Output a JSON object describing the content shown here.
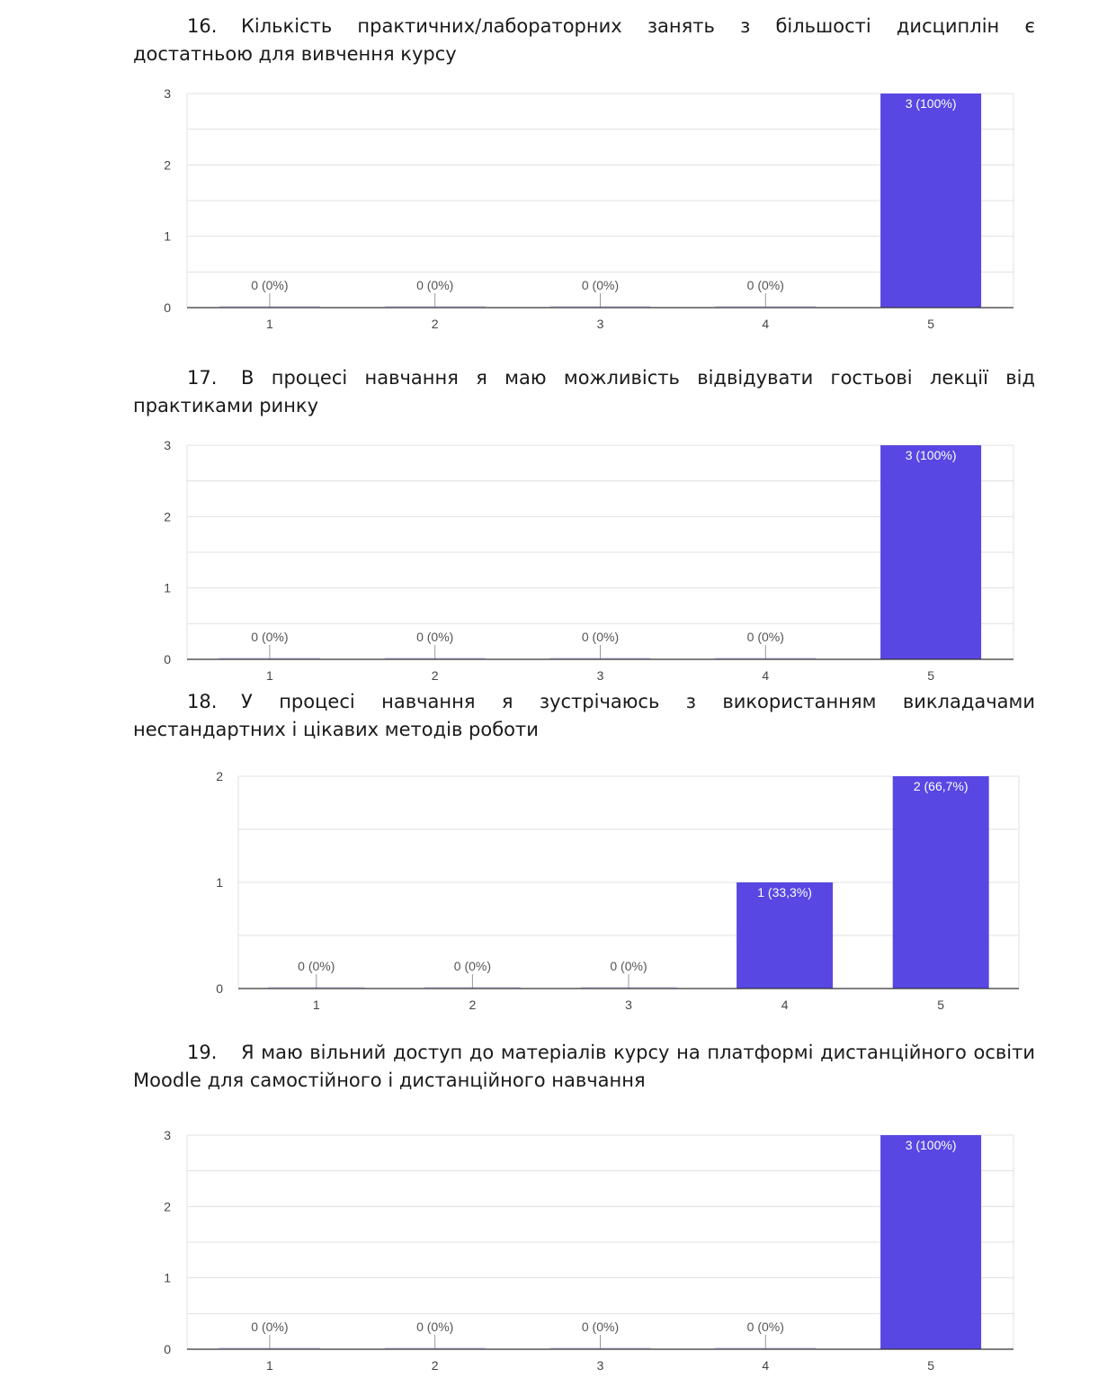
{
  "questions": [
    {
      "number": "16.",
      "text": "Кількість практичних/лабораторних занять з більшості дисциплін є достатньою для вивчення курсу"
    },
    {
      "number": "17.",
      "text": "В процесі навчання я маю можливість відвідувати гостьові лекції від практиками ринку"
    },
    {
      "number": "18.",
      "text": "У процесі навчання я зустрічаюсь з використанням викладачами нестандартних і цікавих методів роботи"
    },
    {
      "number": "19.",
      "text": "Я маю вільний доступ до матеріалів курсу на платформі дистанційного освіти Moodle для самостійного і дистанційного навчання"
    }
  ],
  "bar_color": "#5847e3",
  "chart_data": [
    {
      "type": "bar",
      "categories": [
        "1",
        "2",
        "3",
        "4",
        "5"
      ],
      "values": [
        0,
        0,
        0,
        0,
        3
      ],
      "labels": [
        "0 (0%)",
        "0 (0%)",
        "0 (0%)",
        "0 (0%)",
        "3 (100%)"
      ],
      "yticks": [
        "0",
        "1",
        "2",
        "3"
      ],
      "ylim": [
        0,
        3
      ],
      "grid": true
    },
    {
      "type": "bar",
      "categories": [
        "1",
        "2",
        "3",
        "4",
        "5"
      ],
      "values": [
        0,
        0,
        0,
        0,
        3
      ],
      "labels": [
        "0 (0%)",
        "0 (0%)",
        "0 (0%)",
        "0 (0%)",
        "3 (100%)"
      ],
      "yticks": [
        "0",
        "1",
        "2",
        "3"
      ],
      "ylim": [
        0,
        3
      ],
      "grid": true
    },
    {
      "type": "bar",
      "categories": [
        "1",
        "2",
        "3",
        "4",
        "5"
      ],
      "values": [
        0,
        0,
        0,
        1,
        2
      ],
      "labels": [
        "0 (0%)",
        "0 (0%)",
        "0 (0%)",
        "1 (33,3%)",
        "2 (66,7%)"
      ],
      "yticks": [
        "0",
        "1",
        "2"
      ],
      "ylim": [
        0,
        2
      ],
      "grid": true
    },
    {
      "type": "bar",
      "categories": [
        "1",
        "2",
        "3",
        "4",
        "5"
      ],
      "values": [
        0,
        0,
        0,
        0,
        3
      ],
      "labels": [
        "0 (0%)",
        "0 (0%)",
        "0 (0%)",
        "0 (0%)",
        "3 (100%)"
      ],
      "yticks": [
        "0",
        "1",
        "2",
        "3"
      ],
      "ylim": [
        0,
        3
      ],
      "grid": true
    }
  ]
}
